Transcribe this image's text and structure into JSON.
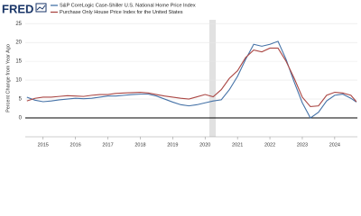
{
  "logo": "FRED",
  "chart_data": {
    "type": "line",
    "y_label": "Percent Change from Year Ago",
    "x": [
      2014.5,
      2014.75,
      2015,
      2015.25,
      2015.5,
      2015.75,
      2016,
      2016.25,
      2016.5,
      2016.75,
      2017,
      2017.25,
      2017.5,
      2017.75,
      2018,
      2018.25,
      2018.5,
      2018.75,
      2019,
      2019.25,
      2019.5,
      2019.75,
      2020,
      2020.25,
      2020.5,
      2020.75,
      2021,
      2021.25,
      2021.5,
      2021.75,
      2022,
      2022.25,
      2022.5,
      2022.75,
      2023,
      2023.25,
      2023.5,
      2023.75,
      2024,
      2024.25,
      2024.5,
      2024.67
    ],
    "series": [
      {
        "name": "S&P CoreLogic Case-Shiller U.S. National Home Price Index",
        "color": "#4572a7",
        "values": [
          5.5,
          4.7,
          4.3,
          4.5,
          4.8,
          5.0,
          5.2,
          5.1,
          5.2,
          5.5,
          5.8,
          5.8,
          6.0,
          6.2,
          6.3,
          6.3,
          5.8,
          5.0,
          4.2,
          3.5,
          3.2,
          3.5,
          4.0,
          4.5,
          4.8,
          7.5,
          11.0,
          15.5,
          19.5,
          19.0,
          19.5,
          20.3,
          15.5,
          9.5,
          4.0,
          0.0,
          1.5,
          4.5,
          6.0,
          6.3,
          5.2,
          4.2
        ]
      },
      {
        "name": "Purchase Only House Price Index for the United States",
        "color": "#aa4643",
        "values": [
          4.5,
          5.2,
          5.5,
          5.5,
          5.7,
          5.9,
          5.8,
          5.7,
          6.0,
          6.2,
          6.2,
          6.5,
          6.6,
          6.7,
          6.8,
          6.6,
          6.2,
          5.8,
          5.5,
          5.2,
          5.0,
          5.6,
          6.2,
          5.6,
          7.5,
          10.5,
          12.5,
          16.0,
          18.0,
          17.5,
          18.5,
          18.5,
          15.0,
          10.5,
          5.5,
          3.0,
          3.2,
          6.0,
          6.8,
          6.6,
          6.0,
          4.3
        ]
      }
    ],
    "xlim": [
      2014.45,
      2024.7
    ],
    "xticks": [
      2015,
      2016,
      2017,
      2018,
      2019,
      2020,
      2021,
      2022,
      2023,
      2024
    ],
    "ylim": [
      -5,
      26
    ],
    "yticks": [
      0,
      5,
      10,
      15,
      20,
      25
    ],
    "grid": true,
    "zero_line": true,
    "shading": [
      [
        2020.13,
        2020.33
      ]
    ],
    "shading_color": "#e1e1e1"
  }
}
